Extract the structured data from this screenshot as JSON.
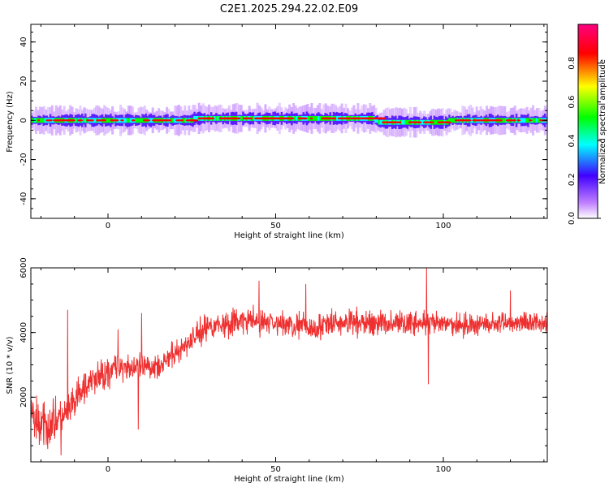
{
  "title": "C2E1.2025.294.22.02.E09",
  "chart_data": [
    {
      "type": "heatmap",
      "xlabel": "Height of straight line (km)",
      "ylabel": "Frequency (Hz)",
      "xlim": [
        -23,
        131
      ],
      "ylim": [
        -50,
        49
      ],
      "x_ticks": [
        0,
        50,
        100
      ],
      "x_tick_labels": [
        "0",
        "50",
        "100"
      ],
      "y_ticks": [
        -40,
        -20,
        0,
        20,
        40
      ],
      "y_tick_labels": [
        "-40",
        "-20",
        "0",
        "20",
        "40"
      ],
      "colorbar": {
        "label": "Normalized spectral amplitude",
        "range": [
          0,
          1
        ],
        "ticks": [
          0,
          0.2,
          0.4,
          0.6,
          0.8
        ],
        "tick_labels": [
          "0.0",
          "0.2",
          "0.4",
          "0.6",
          "0.8"
        ],
        "colormap": [
          "#ffffff",
          "#c080ff",
          "#4000ff",
          "#00ffff",
          "#00ff00",
          "#ffff00",
          "#ff0000",
          "#ff0080"
        ]
      },
      "ridge_frequency_hz": 0,
      "ridge_segments": [
        {
          "x": [
            -23,
            25
          ],
          "y": 0
        },
        {
          "x": [
            25,
            79
          ],
          "y": 1
        },
        {
          "x": [
            79,
            80
          ],
          "y": 0
        },
        {
          "x": [
            80,
            101
          ],
          "y": -1
        },
        {
          "x": [
            101,
            131
          ],
          "y": 0
        }
      ],
      "grid": false
    },
    {
      "type": "line",
      "xlabel": "Height of straight line (km)",
      "ylabel": "SNR (10 * v/v)",
      "xlim": [
        -23,
        131
      ],
      "ylim": [
        0,
        6000
      ],
      "x_ticks": [
        0,
        50,
        100
      ],
      "x_tick_labels": [
        "0",
        "50",
        "100"
      ],
      "y_ticks": [
        2000,
        4000,
        6000
      ],
      "y_tick_labels": [
        "2000",
        "4000",
        "6000"
      ],
      "color": "#ee3030",
      "trend_points": [
        {
          "x": -23,
          "y": 1500
        },
        {
          "x": -20,
          "y": 1100
        },
        {
          "x": -17,
          "y": 1200
        },
        {
          "x": -13,
          "y": 1400
        },
        {
          "x": -10,
          "y": 1800
        },
        {
          "x": -7,
          "y": 2300
        },
        {
          "x": -3,
          "y": 2600
        },
        {
          "x": 0,
          "y": 2800
        },
        {
          "x": 4,
          "y": 3000
        },
        {
          "x": 8,
          "y": 2900
        },
        {
          "x": 12,
          "y": 2900
        },
        {
          "x": 17,
          "y": 3100
        },
        {
          "x": 22,
          "y": 3500
        },
        {
          "x": 26,
          "y": 3900
        },
        {
          "x": 30,
          "y": 4200
        },
        {
          "x": 40,
          "y": 4350
        },
        {
          "x": 50,
          "y": 4300
        },
        {
          "x": 60,
          "y": 4150
        },
        {
          "x": 70,
          "y": 4300
        },
        {
          "x": 80,
          "y": 4300
        },
        {
          "x": 90,
          "y": 4300
        },
        {
          "x": 100,
          "y": 4250
        },
        {
          "x": 110,
          "y": 4250
        },
        {
          "x": 120,
          "y": 4300
        },
        {
          "x": 131,
          "y": 4350
        }
      ],
      "noise_amplitude_points": [
        {
          "x": -23,
          "y": 500
        },
        {
          "x": -10,
          "y": 400
        },
        {
          "x": 10,
          "y": 300
        },
        {
          "x": 25,
          "y": 300
        },
        {
          "x": 50,
          "y": 300
        },
        {
          "x": 131,
          "y": 250
        }
      ],
      "spikes": [
        {
          "x": -12,
          "y": 4700
        },
        {
          "x": -14,
          "y": 200
        },
        {
          "x": -18,
          "y": 400
        },
        {
          "x": 10,
          "y": 4600
        },
        {
          "x": 9,
          "y": 1000
        },
        {
          "x": 3,
          "y": 4100
        },
        {
          "x": 45,
          "y": 5600
        },
        {
          "x": 59,
          "y": 5500
        },
        {
          "x": 95,
          "y": 6000
        },
        {
          "x": 95.5,
          "y": 2400
        },
        {
          "x": 120,
          "y": 5300
        }
      ],
      "grid": false
    }
  ]
}
